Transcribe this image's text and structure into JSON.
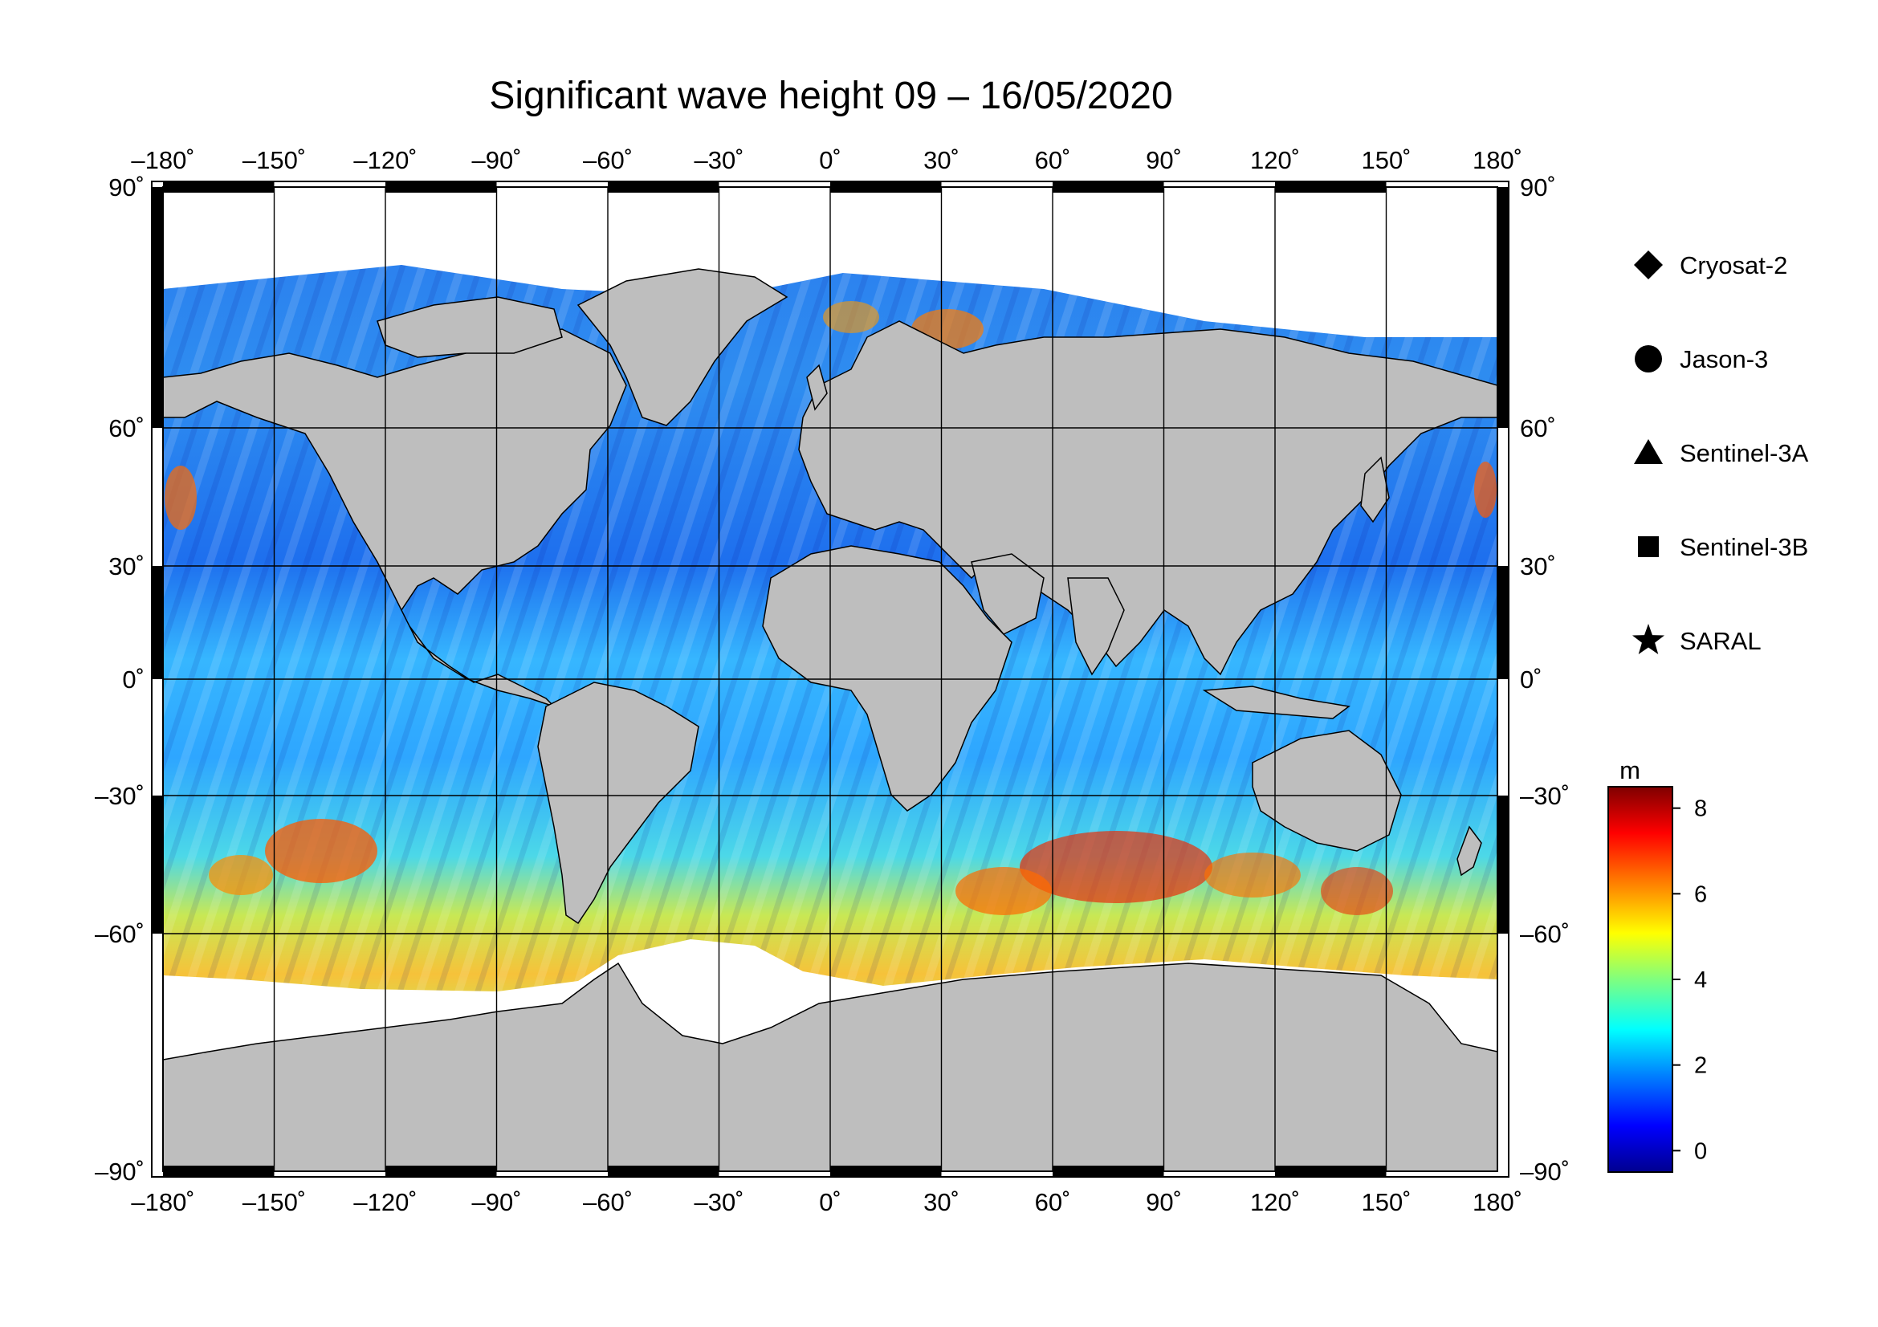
{
  "title": "Significant wave height 09 – 16/05/2020",
  "axes": {
    "lon_labels": [
      "–180˚",
      "–150˚",
      "–120˚",
      "–90˚",
      "–60˚",
      "–30˚",
      "0˚",
      "30˚",
      "60˚",
      "90˚",
      "120˚",
      "150˚",
      "180˚"
    ],
    "lat_labels": [
      "90˚",
      "60˚",
      "30˚",
      "0˚",
      "–30˚",
      "–60˚",
      "–90˚"
    ],
    "lon_range": [
      -180,
      180
    ],
    "lat_range": [
      -90,
      90
    ]
  },
  "legend": {
    "items": [
      {
        "label": "Cryosat-2",
        "marker": "diamond-icon"
      },
      {
        "label": "Jason-3",
        "marker": "circle-icon"
      },
      {
        "label": "Sentinel-3A",
        "marker": "triangle-icon"
      },
      {
        "label": "Sentinel-3B",
        "marker": "square-icon"
      },
      {
        "label": "SARAL",
        "marker": "star-icon"
      }
    ]
  },
  "colorbar": {
    "unit": "m",
    "ticks": [
      "8",
      "6",
      "4",
      "2",
      "0"
    ],
    "range": [
      -0.5,
      8.5
    ],
    "colors": [
      "#00008f",
      "#0000ff",
      "#007fff",
      "#00ffff",
      "#7fff7f",
      "#ffff00",
      "#ff7f00",
      "#ff0000",
      "#7f0000"
    ]
  },
  "colors": {
    "land": "#bebebe",
    "ice": "#ffffff",
    "grid": "#000000"
  }
}
